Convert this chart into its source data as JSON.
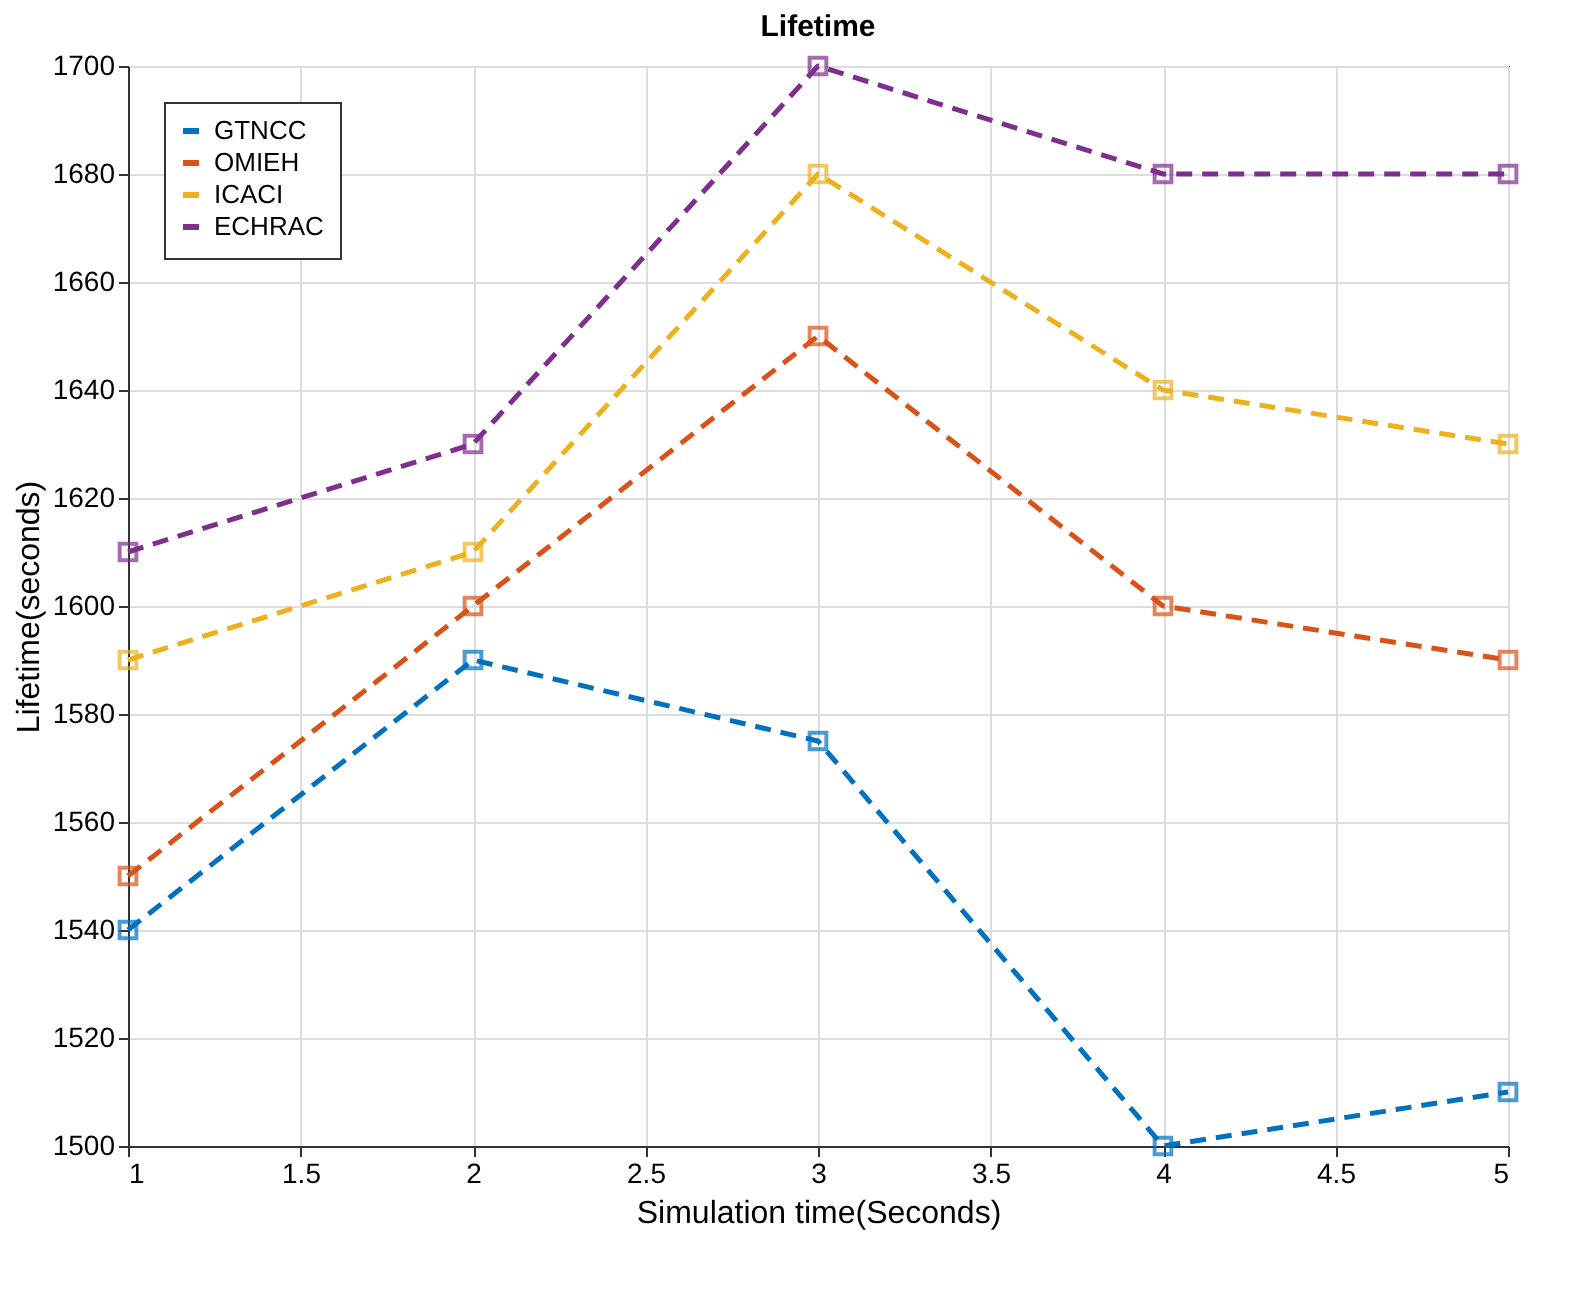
{
  "chart_data": {
    "type": "line",
    "title": "Lifetime",
    "xlabel": "Simulation time(Seconds)",
    "ylabel": "Lifetime(seconds)",
    "x": [
      1,
      2,
      3,
      4,
      5
    ],
    "series": [
      {
        "name": "GTNCC",
        "color": "#0072bd",
        "values": [
          1540,
          1590,
          1575,
          1500,
          1510
        ]
      },
      {
        "name": "OMIEH",
        "color": "#d95319",
        "values": [
          1550,
          1600,
          1650,
          1600,
          1590
        ]
      },
      {
        "name": "ICACI",
        "color": "#edb120",
        "values": [
          1590,
          1610,
          1680,
          1640,
          1630
        ]
      },
      {
        "name": "ECHRAC",
        "color": "#7e2f8e",
        "values": [
          1610,
          1630,
          1700,
          1680,
          1680
        ]
      }
    ],
    "xlim": [
      1,
      5
    ],
    "xticks": [
      1,
      1.5,
      2,
      2.5,
      3,
      3.5,
      4,
      4.5,
      5
    ],
    "ylim": [
      1500,
      1700
    ],
    "yticks": [
      1500,
      1520,
      1540,
      1560,
      1580,
      1600,
      1620,
      1640,
      1660,
      1680,
      1700
    ],
    "grid": true,
    "legend": "top left",
    "marker": "square",
    "line_style": "dashed"
  }
}
